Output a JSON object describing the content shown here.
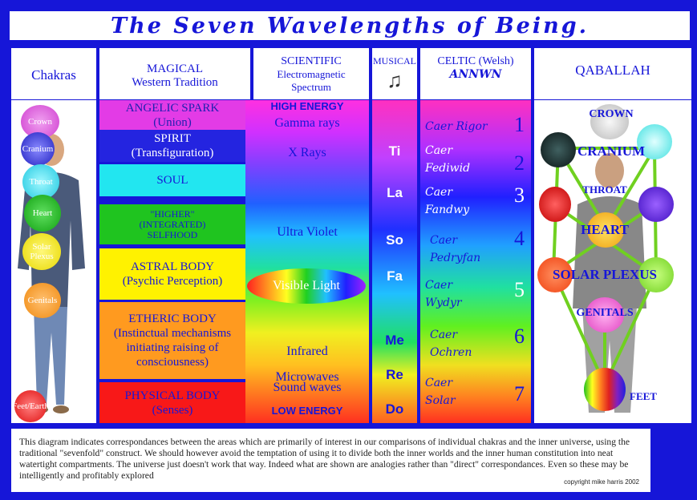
{
  "title": "The Seven Wavelengths of Being.",
  "headers": {
    "chakras": "Chakras",
    "magical_line1": "MAGICAL",
    "magical_line2": "Western Tradition",
    "scientific_line1": "SCIENTIFIC",
    "scientific_line2": "Electromagnetic",
    "scientific_line3": "Spectrum",
    "musical": "MUSICAL",
    "celtic_line1": "CELTIC (Welsh)",
    "celtic_line2": "ANNWN",
    "qaballah": "QABALLAH"
  },
  "chakras": [
    "Crown",
    "Cranium",
    "Throat",
    "Heart",
    "Solar Plexus",
    "Genitals",
    "Feet/Earth"
  ],
  "magical": [
    {
      "title": "ANGELIC SPARK",
      "sub": "(Union)"
    },
    {
      "title": "SPIRIT",
      "sub": "(Transfiguration)"
    },
    {
      "title": "SOUL",
      "sub": ""
    },
    {
      "title": "\"HIGHER\"\n(INTEGRATED)\nSELFHOOD",
      "sub": ""
    },
    {
      "title": "ASTRAL BODY",
      "sub": "(Psychic Perception)"
    },
    {
      "title": "ETHERIC BODY",
      "sub": "(Instinctual mechanisms\ninitiating raising of\nconsciousness)"
    },
    {
      "title": "PHYSICAL BODY",
      "sub": "(Senses)"
    }
  ],
  "scientific": {
    "high": "HIGH ENERGY",
    "gamma": "Gamma rays",
    "xrays": "X Rays",
    "uv": "Ultra Violet",
    "visible": "Visible Light",
    "ir": "Infrared",
    "micro": "Microwaves",
    "sound": "Sound waves",
    "low": "LOW ENERGY"
  },
  "musical": [
    "Ti",
    "La",
    "So",
    "Fa",
    "Me",
    "Re",
    "Do"
  ],
  "celtic": [
    {
      "name": "Caer Rigor",
      "num": "1"
    },
    {
      "name": "Caer\nFediwid",
      "num": "2"
    },
    {
      "name": "Caer\nFandwy",
      "num": "3"
    },
    {
      "name": "Caer\nPedryfan",
      "num": "4"
    },
    {
      "name": "Caer\nWydyr",
      "num": "5"
    },
    {
      "name": "Caer\nOchren",
      "num": "6"
    },
    {
      "name": "Caer\nSolar",
      "num": "7"
    }
  ],
  "qaballah": [
    "CROWN",
    "CRANIUM",
    "THROAT",
    "HEART",
    "SOLAR PLEXUS",
    "GENITALS",
    "FEET"
  ],
  "footer": {
    "text": "This diagram indicates correspondances between the areas which are primarily of interest in our comparisons of individual chakras and the inner universe, using the traditional \"sevenfold\" construct. We should however avoid the temptation of using it to divide both the inner worlds and the inner human constitution into neat watertight compartments. The universe just doesn't work that way. Indeed what are shown are analogies rather than \"direct\" correspondances. Even so these may be intelligently and profitably explored",
    "copyright": "copyright mike harris 2002"
  },
  "colors": {
    "frame": "#1616d8",
    "magical_bands": [
      "#e33be6",
      "#2424e0",
      "#22e6f0",
      "#1fc41f",
      "#fff200",
      "#ff9a1f",
      "#f81818"
    ],
    "magical_text": [
      "#2020b0",
      "#ffffff",
      "#1616d8",
      "#1616d8",
      "#1616d8",
      "#1616d8",
      "#1616d8"
    ]
  }
}
